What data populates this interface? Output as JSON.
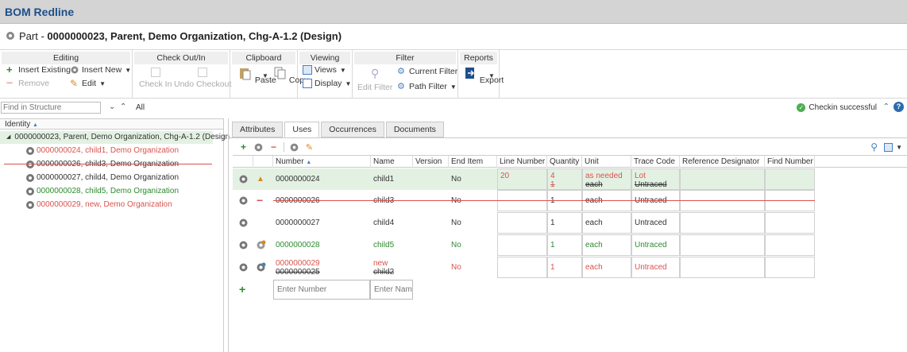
{
  "app": {
    "title": "BOM Redline"
  },
  "part": {
    "prefix": "Part - ",
    "title": "0000000023, Parent, Demo Organization, Chg-A-1.2 (Design)"
  },
  "ribbon": {
    "editing": {
      "title": "Editing",
      "insert_existing": "Insert Existing",
      "insert_new": "Insert New",
      "remove": "Remove",
      "edit": "Edit"
    },
    "checkout": {
      "title": "Check Out/In",
      "check_in": "Check In",
      "undo_checkout": "Undo Checkout"
    },
    "clipboard": {
      "title": "Clipboard",
      "paste": "Paste",
      "copy": "Copy"
    },
    "viewing": {
      "title": "Viewing",
      "views": "Views",
      "display": "Display"
    },
    "filter": {
      "title": "Filter",
      "edit_filter": "Edit Filter",
      "current_filter": "Current Filter",
      "path_filter": "Path Filter"
    },
    "reports": {
      "title": "Reports",
      "export": "Export"
    }
  },
  "search": {
    "placeholder": "Find in Structure",
    "all_label": "All",
    "status": "Checkin successful"
  },
  "tree": {
    "header": "Identity",
    "root": "0000000023, Parent, Demo Organization, Chg-A-1.2 (Design",
    "items": [
      {
        "label": "0000000024, child1, Demo Organization",
        "state": "changed"
      },
      {
        "label": "0000000026, child3, Demo Organization",
        "state": "removed"
      },
      {
        "label": "0000000027, child4, Demo Organization",
        "state": "unchanged"
      },
      {
        "label": "0000000028, child5, Demo Organization",
        "state": "added"
      },
      {
        "label": "0000000029, new, Demo Organization",
        "state": "replaced"
      }
    ]
  },
  "tabs": [
    "Attributes",
    "Uses",
    "Occurrences",
    "Documents"
  ],
  "active_tab": "Uses",
  "grid": {
    "columns": [
      "Number",
      "Name",
      "Version",
      "End Item",
      "Line Number",
      "Quantity",
      "Unit",
      "Trace Code",
      "Reference Designator",
      "Find Number"
    ],
    "rows": [
      {
        "number": "0000000024",
        "name": "child1",
        "end_item": "No",
        "line_number": "20",
        "quantity_new": "4",
        "quantity_old": "1",
        "unit_new": "as needed",
        "unit_old": "each",
        "trace_new": "Lot",
        "trace_old": "Untraced"
      },
      {
        "number": "0000000026",
        "name": "child3",
        "end_item": "No",
        "quantity": "1",
        "unit": "each",
        "trace": "Untraced"
      },
      {
        "number": "0000000027",
        "name": "child4",
        "end_item": "No",
        "quantity": "1",
        "unit": "each",
        "trace": "Untraced"
      },
      {
        "number": "0000000028",
        "name": "child5",
        "end_item": "No",
        "quantity": "1",
        "unit": "each",
        "trace": "Untraced"
      },
      {
        "number_new": "0000000029",
        "number_old": "0000000025",
        "name_new": "new",
        "name_old": "child2",
        "end_item": "No",
        "quantity": "1",
        "unit": "each",
        "trace": "Untraced"
      }
    ],
    "new_row": {
      "number_placeholder": "Enter Number",
      "name_placeholder": "Enter Name"
    }
  },
  "colors": {
    "header_bg": "#d4d4d4",
    "title": "#1e4f8c",
    "added": "#2e8b2e",
    "changed": "#d9534f",
    "selected_row": "#e3f1e3"
  }
}
